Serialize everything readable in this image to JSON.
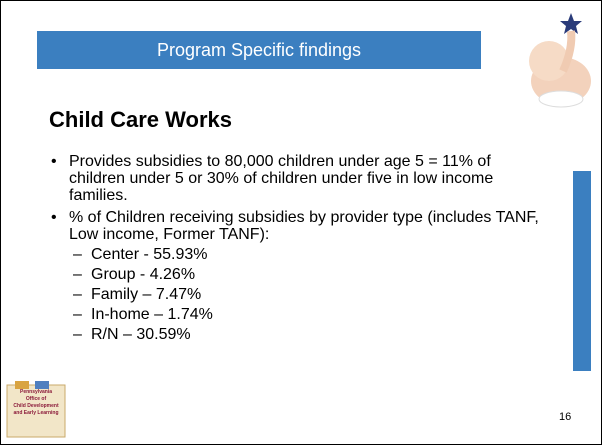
{
  "banner": "Program Specific findings",
  "heading": "Child Care Works",
  "bullets": [
    {
      "text": "Provides subsidies to 80,000 children under age 5 = 11% of children under 5 or 30% of children under five in low income families."
    },
    {
      "text": "% of Children receiving subsidies by provider type (includes TANF, Low income, Former TANF):",
      "sub": [
        "Center - 55.93%",
        "Group - 4.26%",
        "Family – 7.47%",
        "In-home – 1.74%",
        "R/N – 30.59%"
      ]
    }
  ],
  "logo": [
    "Pennsylvania",
    "Office of",
    "Child Development",
    "and Early Learning"
  ],
  "page_number": "16"
}
